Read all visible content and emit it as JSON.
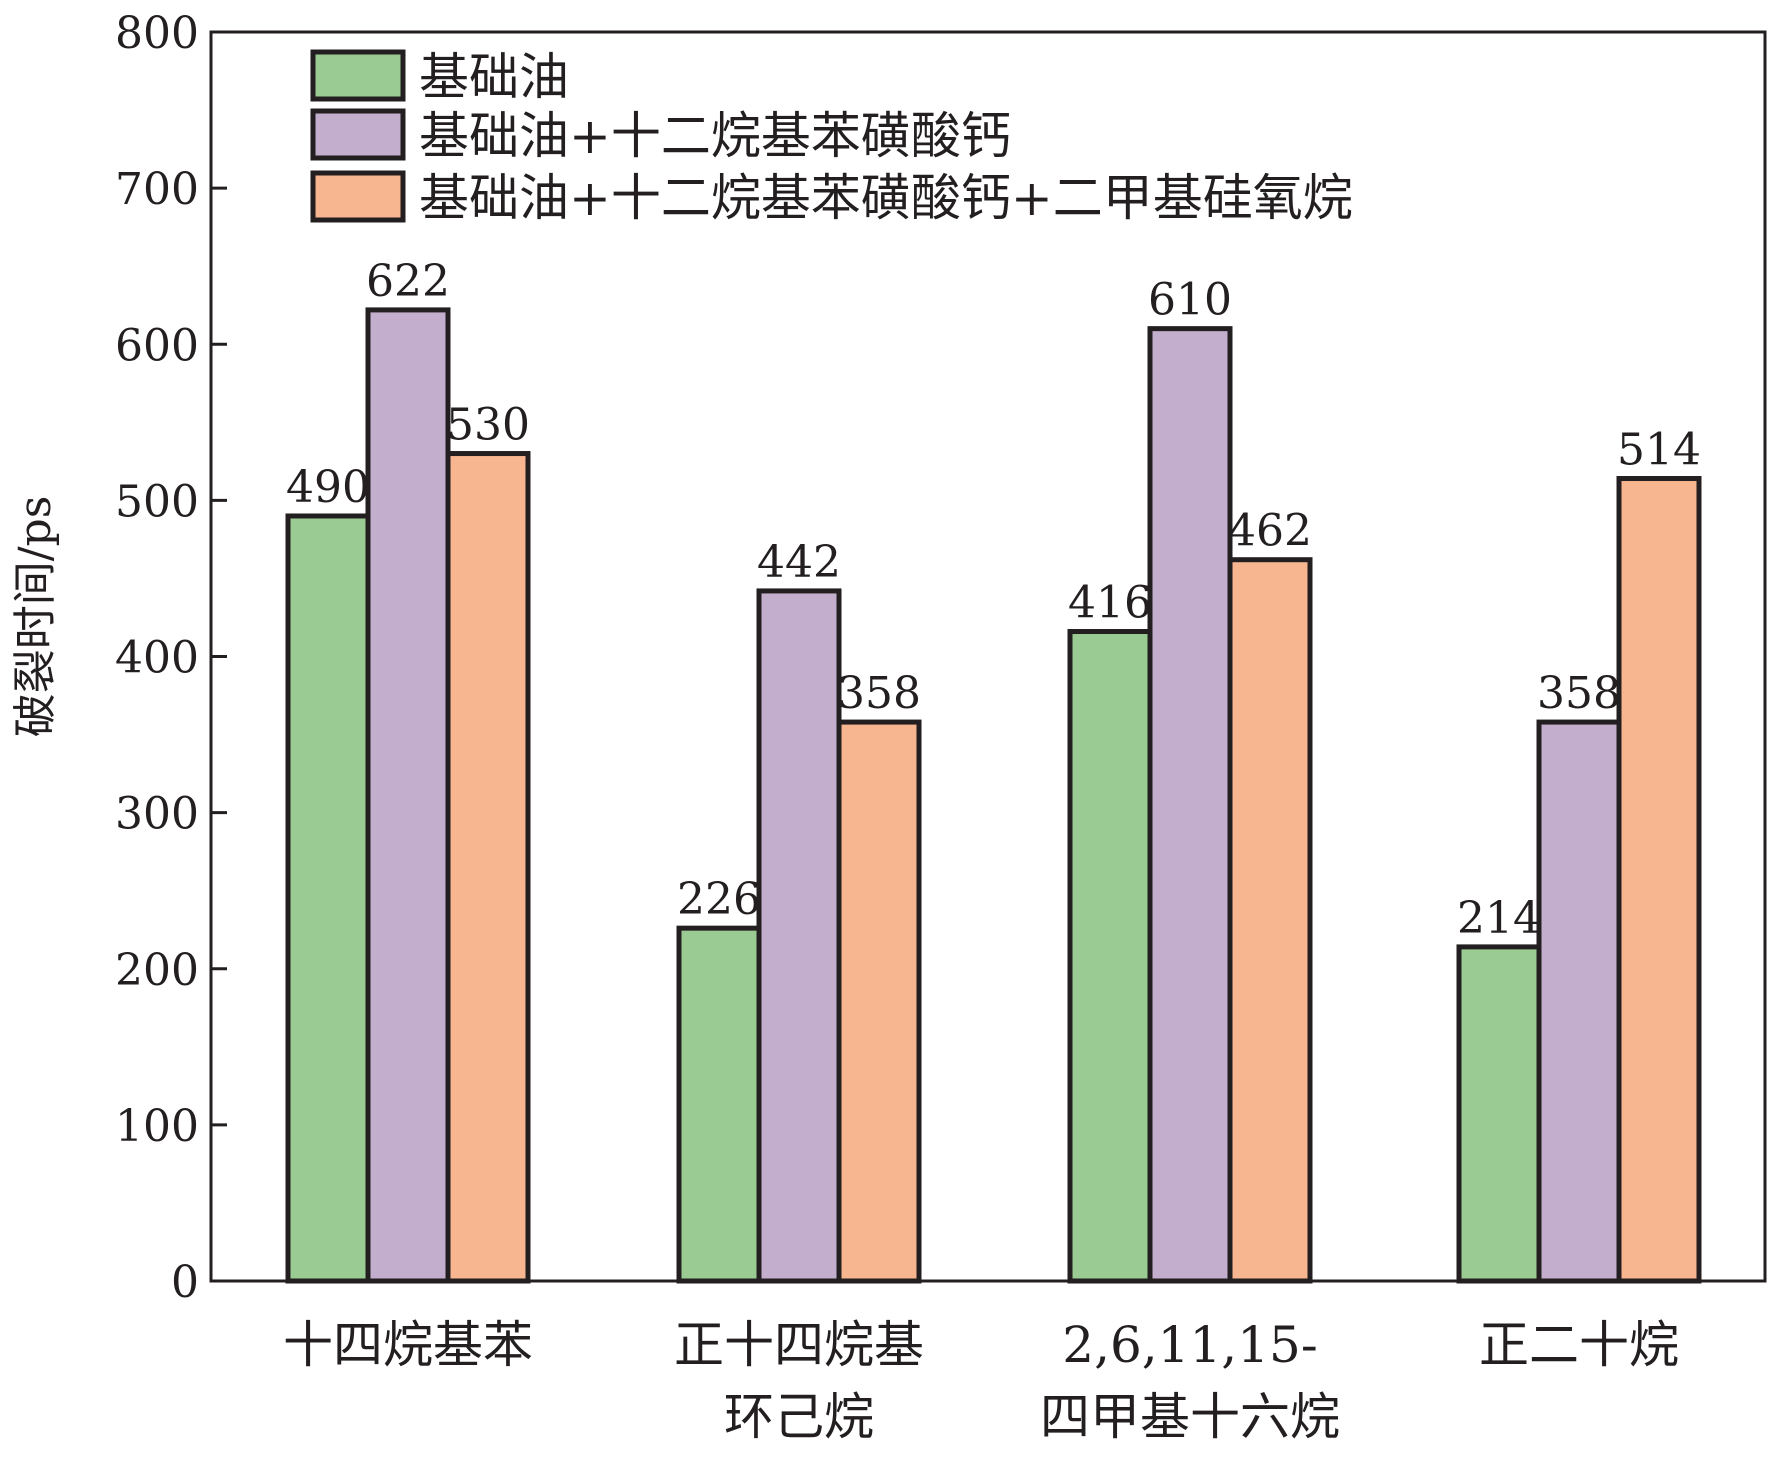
{
  "chart_data": {
    "type": "bar",
    "title": "",
    "ylabel": "破裂时间/ps",
    "xlabel": "",
    "ylim": [
      0,
      800
    ],
    "yticks": [
      0,
      100,
      200,
      300,
      400,
      500,
      600,
      700,
      800
    ],
    "categories": [
      [
        "十四烷基苯"
      ],
      [
        "正十四烷基",
        "环己烷"
      ],
      [
        "2,6,11,15-",
        "四甲基十六烷"
      ],
      [
        "正二十烷"
      ]
    ],
    "series": [
      {
        "name": "基础油",
        "color": "#9acb92",
        "values": [
          490,
          226,
          416,
          214
        ]
      },
      {
        "name": "基础油+十二烷基苯磺酸钙",
        "color": "#c3aecd",
        "values": [
          622,
          442,
          610,
          358
        ]
      },
      {
        "name": "基础油+十二烷基苯磺酸钙+二甲基硅氧烷",
        "color": "#f7b590",
        "values": [
          530,
          358,
          462,
          514
        ]
      }
    ],
    "legend_position": "top-left",
    "grid": false
  }
}
